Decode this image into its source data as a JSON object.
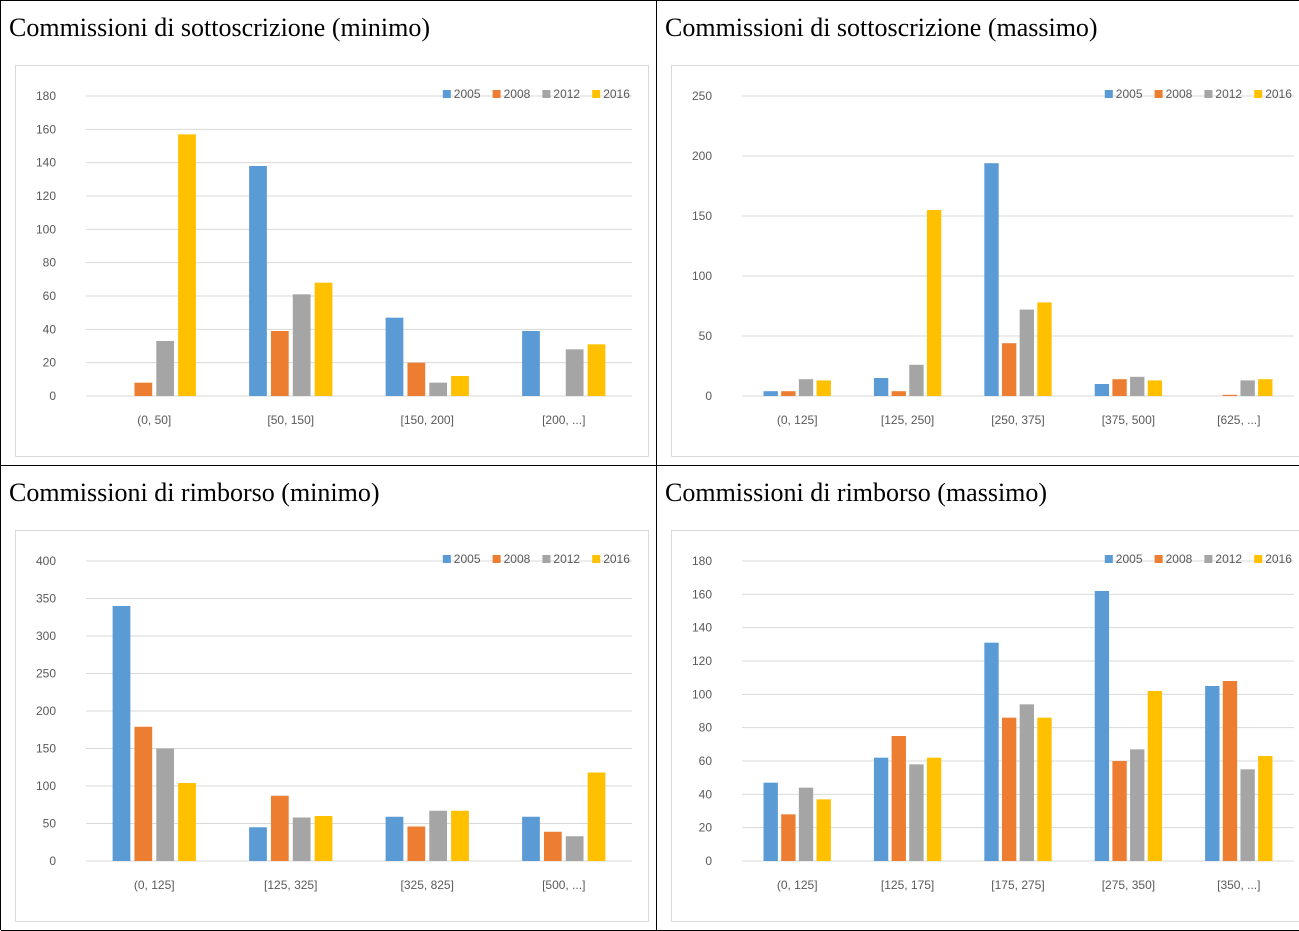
{
  "panels": [
    {
      "title": "Commissioni di sottoscrizione (minimo)"
    },
    {
      "title": "Commissioni di sottoscrizione (massimo)"
    },
    {
      "title": "Commissioni di rimborso (minimo)"
    },
    {
      "title": "Commissioni di rimborso (massimo)"
    }
  ],
  "colors": {
    "2005": "#5b9bd5",
    "2008": "#ed7d31",
    "2012": "#a5a5a5",
    "2016": "#ffc000",
    "grid": "#d9d9d9",
    "text": "#595959"
  },
  "chart_data": [
    {
      "type": "bar",
      "title": "",
      "categories": [
        "(0, 50]",
        "[50, 150]",
        "[150, 200]",
        "[200, ...]"
      ],
      "series": [
        {
          "name": "2005",
          "values": [
            0,
            138,
            47,
            39
          ]
        },
        {
          "name": "2008",
          "values": [
            8,
            39,
            20,
            0
          ]
        },
        {
          "name": "2012",
          "values": [
            33,
            61,
            8,
            28
          ]
        },
        {
          "name": "2016",
          "values": [
            157,
            68,
            12,
            31
          ]
        }
      ],
      "ylim": [
        0,
        180
      ],
      "ytick_step": 20,
      "grid": true,
      "legend": "top-right"
    },
    {
      "type": "bar",
      "title": "",
      "categories": [
        "(0, 125]",
        "[125, 250]",
        "[250, 375]",
        "[375, 500]",
        "[625, ...]"
      ],
      "series": [
        {
          "name": "2005",
          "values": [
            4,
            15,
            194,
            10,
            0
          ]
        },
        {
          "name": "2008",
          "values": [
            4,
            4,
            44,
            14,
            1
          ]
        },
        {
          "name": "2012",
          "values": [
            14,
            26,
            72,
            16,
            13
          ]
        },
        {
          "name": "2016",
          "values": [
            13,
            155,
            78,
            13,
            14
          ]
        }
      ],
      "ylim": [
        0,
        250
      ],
      "ytick_step": 50,
      "grid": true,
      "legend": "top-right"
    },
    {
      "type": "bar",
      "title": "",
      "categories": [
        "(0, 125]",
        "[125, 325]",
        "[325, 825]",
        "[500, ...]"
      ],
      "series": [
        {
          "name": "2005",
          "values": [
            340,
            45,
            59,
            59
          ]
        },
        {
          "name": "2008",
          "values": [
            179,
            87,
            46,
            39
          ]
        },
        {
          "name": "2012",
          "values": [
            150,
            58,
            67,
            33
          ]
        },
        {
          "name": "2016",
          "values": [
            104,
            60,
            67,
            118
          ]
        }
      ],
      "ylim": [
        0,
        400
      ],
      "ytick_step": 50,
      "grid": true,
      "legend": "top-right"
    },
    {
      "type": "bar",
      "title": "",
      "categories": [
        "(0, 125]",
        "[125, 175]",
        "[175, 275]",
        "[275, 350]",
        "[350, ...]"
      ],
      "series": [
        {
          "name": "2005",
          "values": [
            47,
            62,
            131,
            162,
            105
          ]
        },
        {
          "name": "2008",
          "values": [
            28,
            75,
            86,
            60,
            108
          ]
        },
        {
          "name": "2012",
          "values": [
            44,
            58,
            94,
            67,
            55
          ]
        },
        {
          "name": "2016",
          "values": [
            37,
            62,
            86,
            102,
            63
          ]
        }
      ],
      "ylim": [
        0,
        180
      ],
      "ytick_step": 20,
      "grid": true,
      "legend": "top-right"
    }
  ]
}
